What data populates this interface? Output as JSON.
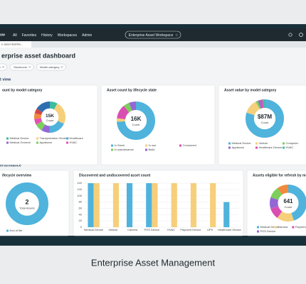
{
  "nav": {
    "brand": "ow",
    "items": [
      "All",
      "Favorites",
      "History",
      "Workspaces",
      "Admin"
    ],
    "workspace": "Enterprise Asset Workspace"
  },
  "tab": "e asset dashbo...",
  "title": "erprise asset dashboard",
  "filters": [
    "v",
    "Stockroom",
    "Model category"
  ],
  "sections": [
    "t view",
    "erformance"
  ],
  "caption": "Enterprise Asset Management",
  "cards": [
    {
      "title": "ount by model category",
      "chart": {
        "type": "donut",
        "center_value": "15K",
        "center_label": "Count",
        "categories": [
          "Medical Device",
          "Transportation General",
          "Healthcare",
          "Medical General",
          "Appliance",
          "HVAC",
          null,
          null,
          null
        ],
        "values": [
          8,
          24,
          18,
          9,
          8,
          6,
          6,
          5,
          16
        ],
        "colors": [
          "#3dbb9f",
          "#f6cf7a",
          "#4fb3dc",
          "#9467d4",
          "#7bcf5a",
          "#e44fb5",
          "#f08a3c",
          "#d64545",
          "#2f6fb0"
        ]
      }
    },
    {
      "title": "Asset count by lifecycle state",
      "chart": {
        "type": "donut",
        "center_value": "16K",
        "center_label": "Count",
        "categories": [
          "In Stock",
          "In use",
          "Consumed",
          "In maintenance",
          "Build"
        ],
        "values": [
          74,
          3,
          12,
          5,
          6
        ],
        "colors": [
          "#4fb3dc",
          "#f6cf7a",
          "#d94fb1",
          "#7bcf5a",
          "#9467d4"
        ]
      }
    },
    {
      "title": "Asset value by model category",
      "chart": {
        "type": "donut",
        "center_value": "$87M",
        "center_label": "Count",
        "categories": [
          "Medical Device",
          "Vehicle",
          "Computer",
          "Appliance",
          "Healthcare Device",
          "HVAC"
        ],
        "values": [
          80,
          12,
          2,
          2,
          2,
          2
        ],
        "colors": [
          "#4fb3dc",
          "#f6cf7a",
          "#7bcf5a",
          "#9467d4",
          "#d94fb1",
          "#3dbb9f"
        ]
      }
    },
    {
      "title": "ifecycle overview",
      "chart": {
        "type": "donut",
        "center_value": "2",
        "center_label": "Total Assets",
        "categories": [
          "End of life"
        ],
        "values": [
          2
        ],
        "colors": [
          "#4fb3dc"
        ]
      }
    },
    {
      "title": "Discovered and undiscovered asset count",
      "chart": {
        "type": "bar",
        "categories": [
          "Medical Device",
          "Vehicle",
          "Camera",
          "POS Device",
          "HVAC",
          "Payment Device",
          "UPS",
          "Healthcare Device"
        ],
        "series": [
          {
            "color": "#4fb3dc",
            "values": [
              140,
              0,
              140,
              140,
              0,
              0,
              0,
              80
            ]
          },
          {
            "color": "#f6cf7a",
            "values": [
              140,
              140,
              0,
              140,
              140,
              140,
              140,
              0
            ]
          }
        ],
        "ylim": [
          0,
          140
        ],
        "yticks": [
          0,
          20,
          40,
          60,
          80,
          100,
          120,
          140
        ],
        "grid": true
      }
    },
    {
      "title": "Assets eligible for refresh by model cat",
      "chart": {
        "type": "donut",
        "center_value": "641",
        "center_label": "Count",
        "categories": [
          "Medical Device",
          "Camera",
          "Payment Device",
          "POS Device",
          null,
          null
        ],
        "values": [
          45,
          15,
          10,
          10,
          10,
          10
        ],
        "colors": [
          "#4fb3dc",
          "#f6cf7a",
          "#d94fb1",
          "#9467d4",
          "#7bcf5a",
          "#f08a3c"
        ]
      }
    }
  ]
}
